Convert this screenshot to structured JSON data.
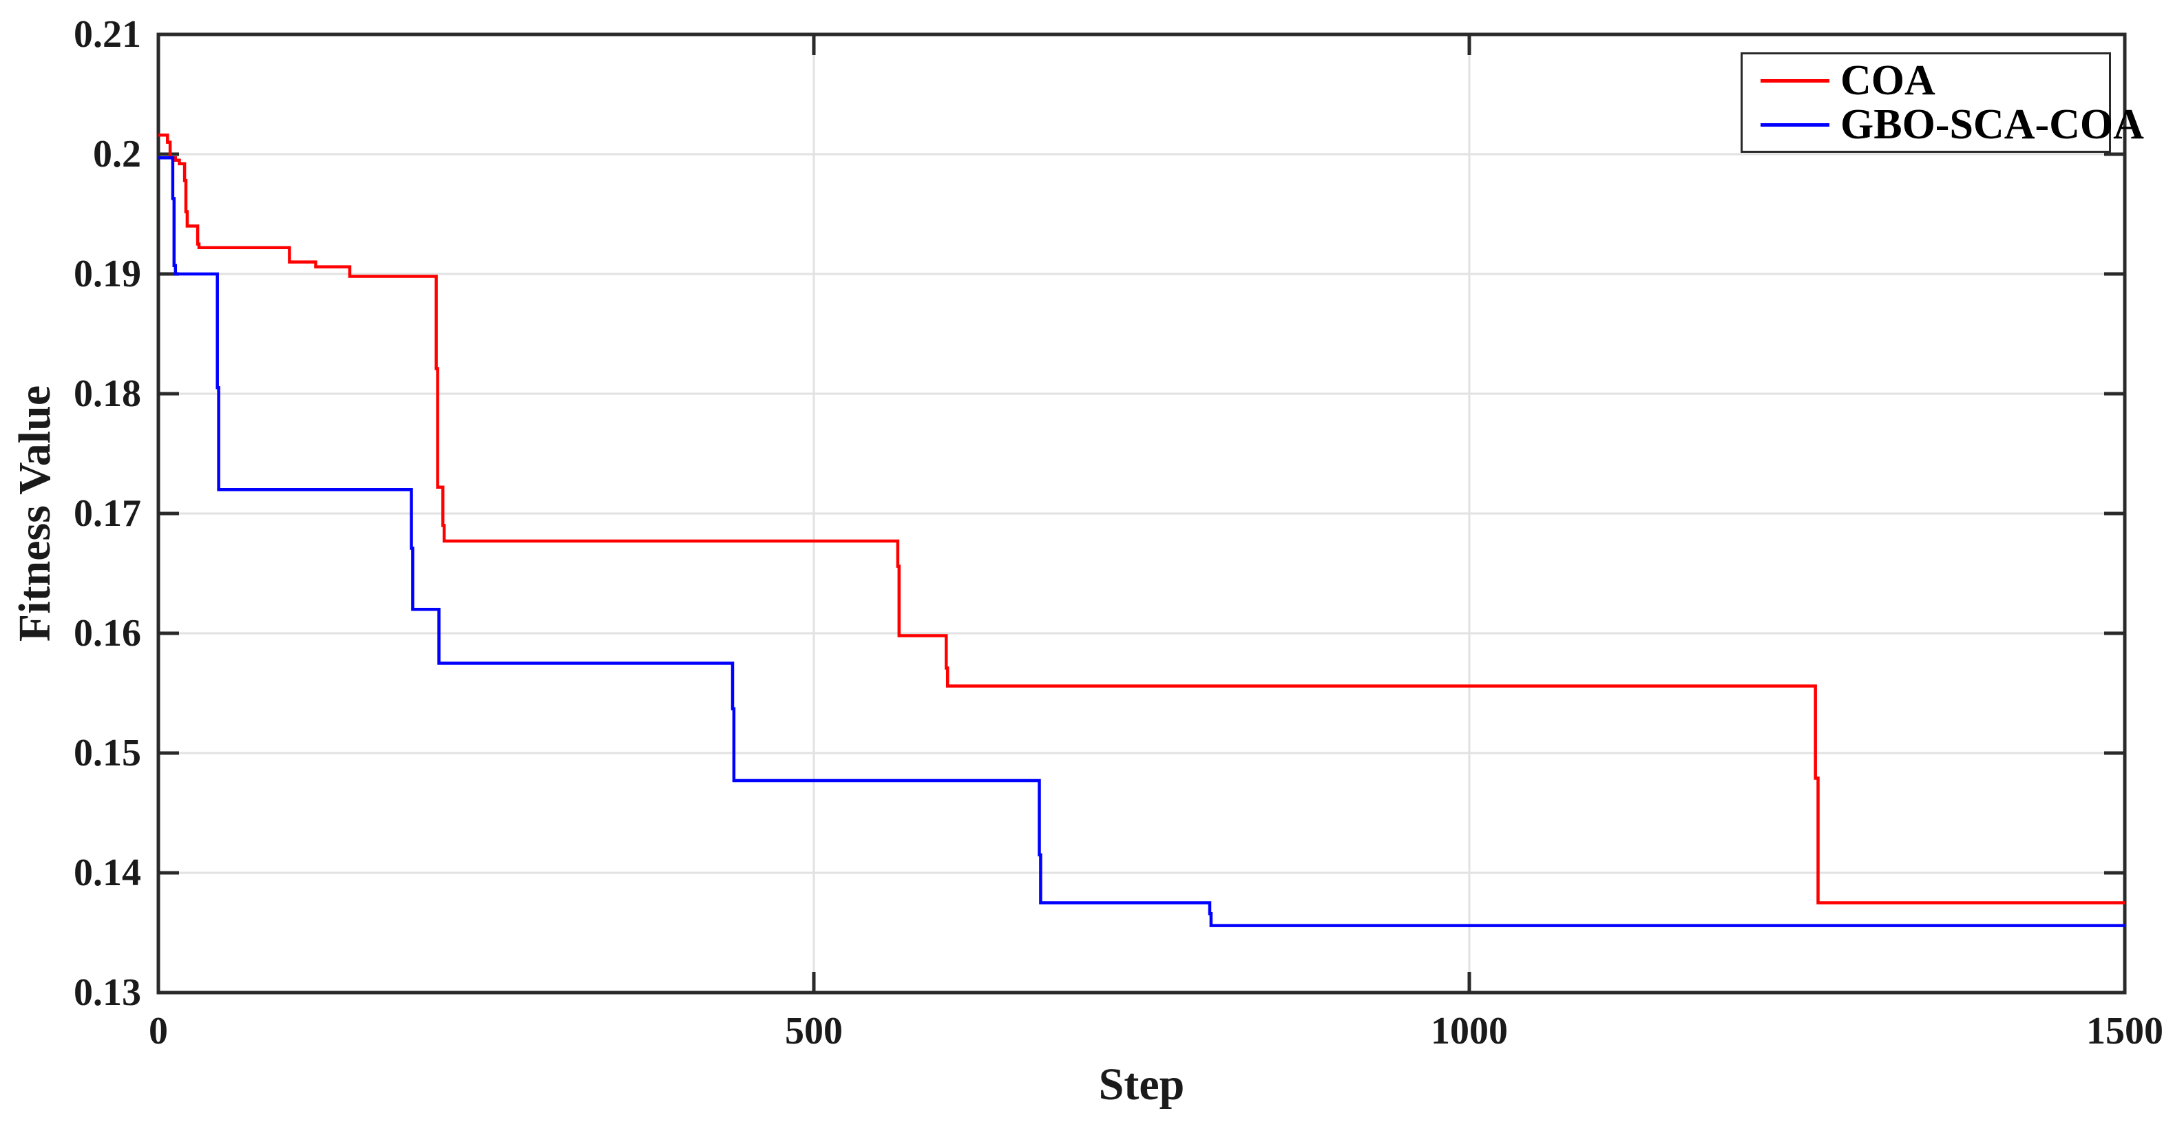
{
  "chart_data": {
    "type": "line",
    "subtype": "step-post",
    "title": "",
    "xlabel": "Step",
    "ylabel": "Fitness Value",
    "xlim": [
      0,
      1500
    ],
    "ylim": [
      0.13,
      0.21
    ],
    "xticks": [
      0,
      500,
      1000,
      1500
    ],
    "xtick_labels": [
      "0",
      "500",
      "1000",
      "1500"
    ],
    "yticks": [
      0.13,
      0.14,
      0.15,
      0.16,
      0.17,
      0.18,
      0.19,
      0.2,
      0.21
    ],
    "ytick_labels": [
      "0.13",
      "0.14",
      "0.15",
      "0.16",
      "0.17",
      "0.18",
      "0.19",
      "0.2",
      "0.21"
    ],
    "grid": true,
    "legend_position": "top-right",
    "series": [
      {
        "name": "COA",
        "color": "#ff0000",
        "points": [
          [
            0,
            0.2016
          ],
          [
            7,
            0.201
          ],
          [
            9,
            0.1997
          ],
          [
            13,
            0.1995
          ],
          [
            16,
            0.1992
          ],
          [
            20,
            0.1978
          ],
          [
            21,
            0.1952
          ],
          [
            22,
            0.194
          ],
          [
            30,
            0.1925
          ],
          [
            31,
            0.1922
          ],
          [
            100,
            0.191
          ],
          [
            120,
            0.1906
          ],
          [
            146,
            0.1898
          ],
          [
            212,
            0.1821
          ],
          [
            213,
            0.1722
          ],
          [
            217,
            0.169
          ],
          [
            218,
            0.1677
          ],
          [
            564,
            0.1656
          ],
          [
            565,
            0.1598
          ],
          [
            601,
            0.1571
          ],
          [
            602,
            0.1556
          ],
          [
            1264,
            0.1479
          ],
          [
            1266,
            0.1375
          ],
          [
            1500,
            0.1375
          ]
        ]
      },
      {
        "name": "GBO-SCA-COA",
        "color": "#0000ff",
        "points": [
          [
            0,
            0.1997
          ],
          [
            11,
            0.1963
          ],
          [
            12,
            0.1907
          ],
          [
            13,
            0.19
          ],
          [
            45,
            0.1805
          ],
          [
            46,
            0.172
          ],
          [
            193,
            0.1671
          ],
          [
            194,
            0.162
          ],
          [
            214,
            0.1575
          ],
          [
            438,
            0.1537
          ],
          [
            439,
            0.1477
          ],
          [
            672,
            0.1415
          ],
          [
            673,
            0.1375
          ],
          [
            802,
            0.1366
          ],
          [
            803,
            0.1356
          ],
          [
            1500,
            0.1356
          ]
        ]
      }
    ]
  },
  "colors": {
    "background": "#ffffff",
    "axis": "#2a2a2a",
    "grid": "#e2e2e2",
    "text": "#1a1a1a"
  }
}
